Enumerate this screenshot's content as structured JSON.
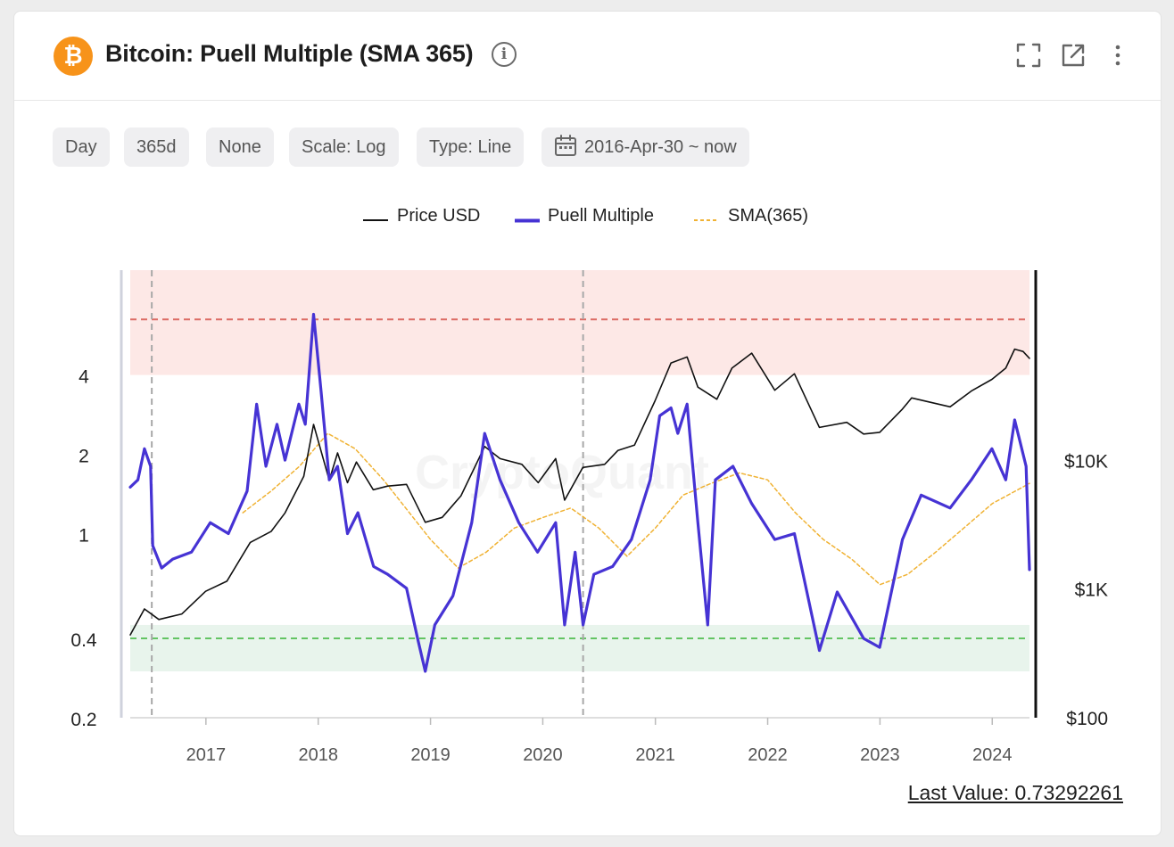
{
  "header": {
    "logo_glyph": "₿",
    "title": "Bitcoin: Puell Multiple (SMA 365)",
    "info_glyph": "i",
    "icons": [
      "fullscreen-icon",
      "external-link-icon",
      "more-vertical-icon"
    ]
  },
  "toolbar": {
    "chips": [
      {
        "id": "interval",
        "label": "Day"
      },
      {
        "id": "window",
        "label": "365d"
      },
      {
        "id": "smoothing",
        "label": "None"
      },
      {
        "id": "scale",
        "label": "Scale: Log"
      },
      {
        "id": "type",
        "label": "Type: Line"
      },
      {
        "id": "range",
        "label": "2016-Apr-30 ~ now",
        "icon": "calendar-icon"
      }
    ]
  },
  "watermark": "CryptoQuant",
  "last_value": "Last Value: 0.73292261",
  "colors": {
    "price": "#111111",
    "puell": "#4633d4",
    "sma": "#f0b233",
    "high_zone": "#fde8e6",
    "low_zone": "#e8f4ec",
    "high_line": "#dc6b64",
    "low_line": "#63c463"
  },
  "chart_data": {
    "type": "line",
    "x_range": [
      "2016-04-30",
      "2024-05-01"
    ],
    "x_ticks": [
      "2017",
      "2018",
      "2019",
      "2020",
      "2021",
      "2022",
      "2023",
      "2024"
    ],
    "y_left": {
      "scale": "log",
      "range": [
        0.2,
        10
      ],
      "ticks": [
        {
          "value": 0.2,
          "label": "0.2"
        },
        {
          "value": 0.4,
          "label": "0.4"
        },
        {
          "value": 1,
          "label": "1"
        },
        {
          "value": 2,
          "label": "2"
        },
        {
          "value": 4,
          "label": "4"
        }
      ]
    },
    "y_right": {
      "scale": "log",
      "range": [
        100,
        300000
      ],
      "ticks": [
        {
          "value": 100,
          "label": "$100"
        },
        {
          "value": 1000,
          "label": "$1K"
        },
        {
          "value": 10000,
          "label": "$10K"
        }
      ]
    },
    "zones": [
      {
        "name": "high",
        "from": 4,
        "to": 10,
        "line": 6.5
      },
      {
        "name": "low",
        "from": 0.3,
        "to": 0.45,
        "line": 0.4
      }
    ],
    "event_lines": [
      "2016-07-09",
      "2020-05-11"
    ],
    "series": [
      {
        "name": "Price USD",
        "axis": "right",
        "points": [
          [
            "2016-04-30",
            440
          ],
          [
            "2016-06-15",
            700
          ],
          [
            "2016-08-01",
            580
          ],
          [
            "2016-10-15",
            640
          ],
          [
            "2016-12-31",
            960
          ],
          [
            "2017-03-10",
            1150
          ],
          [
            "2017-05-25",
            2300
          ],
          [
            "2017-08-01",
            2800
          ],
          [
            "2017-09-15",
            3900
          ],
          [
            "2017-11-15",
            7500
          ],
          [
            "2017-12-17",
            19000
          ],
          [
            "2018-02-06",
            7000
          ],
          [
            "2018-03-05",
            11400
          ],
          [
            "2018-04-06",
            6700
          ],
          [
            "2018-05-05",
            9700
          ],
          [
            "2018-06-29",
            5900
          ],
          [
            "2018-08-15",
            6300
          ],
          [
            "2018-10-15",
            6500
          ],
          [
            "2018-12-15",
            3300
          ],
          [
            "2019-02-08",
            3600
          ],
          [
            "2019-04-10",
            5300
          ],
          [
            "2019-06-26",
            12800
          ],
          [
            "2019-08-15",
            10300
          ],
          [
            "2019-10-25",
            9300
          ],
          [
            "2019-12-17",
            6700
          ],
          [
            "2020-02-12",
            10300
          ],
          [
            "2020-03-12",
            4900
          ],
          [
            "2020-05-10",
            8800
          ],
          [
            "2020-07-20",
            9300
          ],
          [
            "2020-09-01",
            11900
          ],
          [
            "2020-10-25",
            13100
          ],
          [
            "2020-12-31",
            29000
          ],
          [
            "2021-02-21",
            57000
          ],
          [
            "2021-04-14",
            63500
          ],
          [
            "2021-05-19",
            37000
          ],
          [
            "2021-07-20",
            29800
          ],
          [
            "2021-09-07",
            52000
          ],
          [
            "2021-11-10",
            68000
          ],
          [
            "2022-01-24",
            35000
          ],
          [
            "2022-03-29",
            47000
          ],
          [
            "2022-06-18",
            18000
          ],
          [
            "2022-09-15",
            19700
          ],
          [
            "2022-11-09",
            16000
          ],
          [
            "2022-12-31",
            16500
          ],
          [
            "2023-03-15",
            25000
          ],
          [
            "2023-04-14",
            30500
          ],
          [
            "2023-08-17",
            26000
          ],
          [
            "2023-10-25",
            34500
          ],
          [
            "2023-12-31",
            42500
          ],
          [
            "2024-02-14",
            52000
          ],
          [
            "2024-03-14",
            73000
          ],
          [
            "2024-04-10",
            70000
          ],
          [
            "2024-05-01",
            62000
          ]
        ]
      },
      {
        "name": "Puell Multiple",
        "axis": "left",
        "points": [
          [
            "2016-04-30",
            1.5
          ],
          [
            "2016-05-25",
            1.6
          ],
          [
            "2016-06-15",
            2.1
          ],
          [
            "2016-07-05",
            1.8
          ],
          [
            "2016-07-12",
            0.9
          ],
          [
            "2016-08-10",
            0.74
          ],
          [
            "2016-09-15",
            0.8
          ],
          [
            "2016-11-15",
            0.85
          ],
          [
            "2017-01-15",
            1.1
          ],
          [
            "2017-03-15",
            1.0
          ],
          [
            "2017-05-15",
            1.45
          ],
          [
            "2017-06-15",
            3.1
          ],
          [
            "2017-07-15",
            1.8
          ],
          [
            "2017-08-20",
            2.6
          ],
          [
            "2017-09-15",
            1.9
          ],
          [
            "2017-10-30",
            3.1
          ],
          [
            "2017-11-20",
            2.6
          ],
          [
            "2017-12-17",
            6.8
          ],
          [
            "2018-01-10",
            3.5
          ],
          [
            "2018-02-06",
            1.6
          ],
          [
            "2018-03-05",
            1.8
          ],
          [
            "2018-04-06",
            1.0
          ],
          [
            "2018-05-10",
            1.2
          ],
          [
            "2018-06-30",
            0.75
          ],
          [
            "2018-08-15",
            0.7
          ],
          [
            "2018-10-15",
            0.62
          ],
          [
            "2018-11-20",
            0.4
          ],
          [
            "2018-12-15",
            0.3
          ],
          [
            "2019-01-15",
            0.45
          ],
          [
            "2019-03-15",
            0.58
          ],
          [
            "2019-05-15",
            1.1
          ],
          [
            "2019-06-26",
            2.4
          ],
          [
            "2019-08-15",
            1.6
          ],
          [
            "2019-10-15",
            1.1
          ],
          [
            "2019-12-15",
            0.85
          ],
          [
            "2020-02-12",
            1.1
          ],
          [
            "2020-03-12",
            0.45
          ],
          [
            "2020-04-15",
            0.85
          ],
          [
            "2020-05-11",
            0.45
          ],
          [
            "2020-06-15",
            0.7
          ],
          [
            "2020-08-15",
            0.75
          ],
          [
            "2020-10-15",
            0.95
          ],
          [
            "2020-12-15",
            1.6
          ],
          [
            "2021-01-15",
            2.8
          ],
          [
            "2021-02-21",
            3.0
          ],
          [
            "2021-03-15",
            2.4
          ],
          [
            "2021-04-14",
            3.1
          ],
          [
            "2021-05-19",
            1.1
          ],
          [
            "2021-06-20",
            0.45
          ],
          [
            "2021-07-15",
            1.6
          ],
          [
            "2021-09-10",
            1.8
          ],
          [
            "2021-11-10",
            1.3
          ],
          [
            "2022-01-24",
            0.95
          ],
          [
            "2022-03-29",
            1.0
          ],
          [
            "2022-06-18",
            0.36
          ],
          [
            "2022-08-15",
            0.6
          ],
          [
            "2022-11-09",
            0.4
          ],
          [
            "2022-12-31",
            0.37
          ],
          [
            "2023-03-15",
            0.95
          ],
          [
            "2023-05-15",
            1.4
          ],
          [
            "2023-08-17",
            1.25
          ],
          [
            "2023-10-25",
            1.6
          ],
          [
            "2023-12-31",
            2.1
          ],
          [
            "2024-02-14",
            1.6
          ],
          [
            "2024-03-14",
            2.7
          ],
          [
            "2024-04-20",
            1.8
          ],
          [
            "2024-05-01",
            0.73
          ]
        ]
      },
      {
        "name": "SMA(365)",
        "axis": "left",
        "points": [
          [
            "2017-05-01",
            1.2
          ],
          [
            "2017-08-01",
            1.45
          ],
          [
            "2017-11-01",
            1.8
          ],
          [
            "2018-02-01",
            2.4
          ],
          [
            "2018-05-01",
            2.1
          ],
          [
            "2018-08-01",
            1.6
          ],
          [
            "2019-01-01",
            0.95
          ],
          [
            "2019-04-01",
            0.74
          ],
          [
            "2019-07-01",
            0.85
          ],
          [
            "2019-10-01",
            1.05
          ],
          [
            "2020-01-01",
            1.15
          ],
          [
            "2020-04-01",
            1.25
          ],
          [
            "2020-07-01",
            1.05
          ],
          [
            "2020-10-01",
            0.82
          ],
          [
            "2021-01-01",
            1.05
          ],
          [
            "2021-04-01",
            1.4
          ],
          [
            "2021-07-01",
            1.55
          ],
          [
            "2021-10-01",
            1.7
          ],
          [
            "2022-01-01",
            1.6
          ],
          [
            "2022-04-01",
            1.2
          ],
          [
            "2022-07-01",
            0.95
          ],
          [
            "2022-10-01",
            0.8
          ],
          [
            "2023-01-01",
            0.64
          ],
          [
            "2023-04-01",
            0.7
          ],
          [
            "2023-07-01",
            0.85
          ],
          [
            "2023-10-01",
            1.05
          ],
          [
            "2024-01-01",
            1.3
          ],
          [
            "2024-05-01",
            1.55
          ]
        ]
      }
    ]
  }
}
